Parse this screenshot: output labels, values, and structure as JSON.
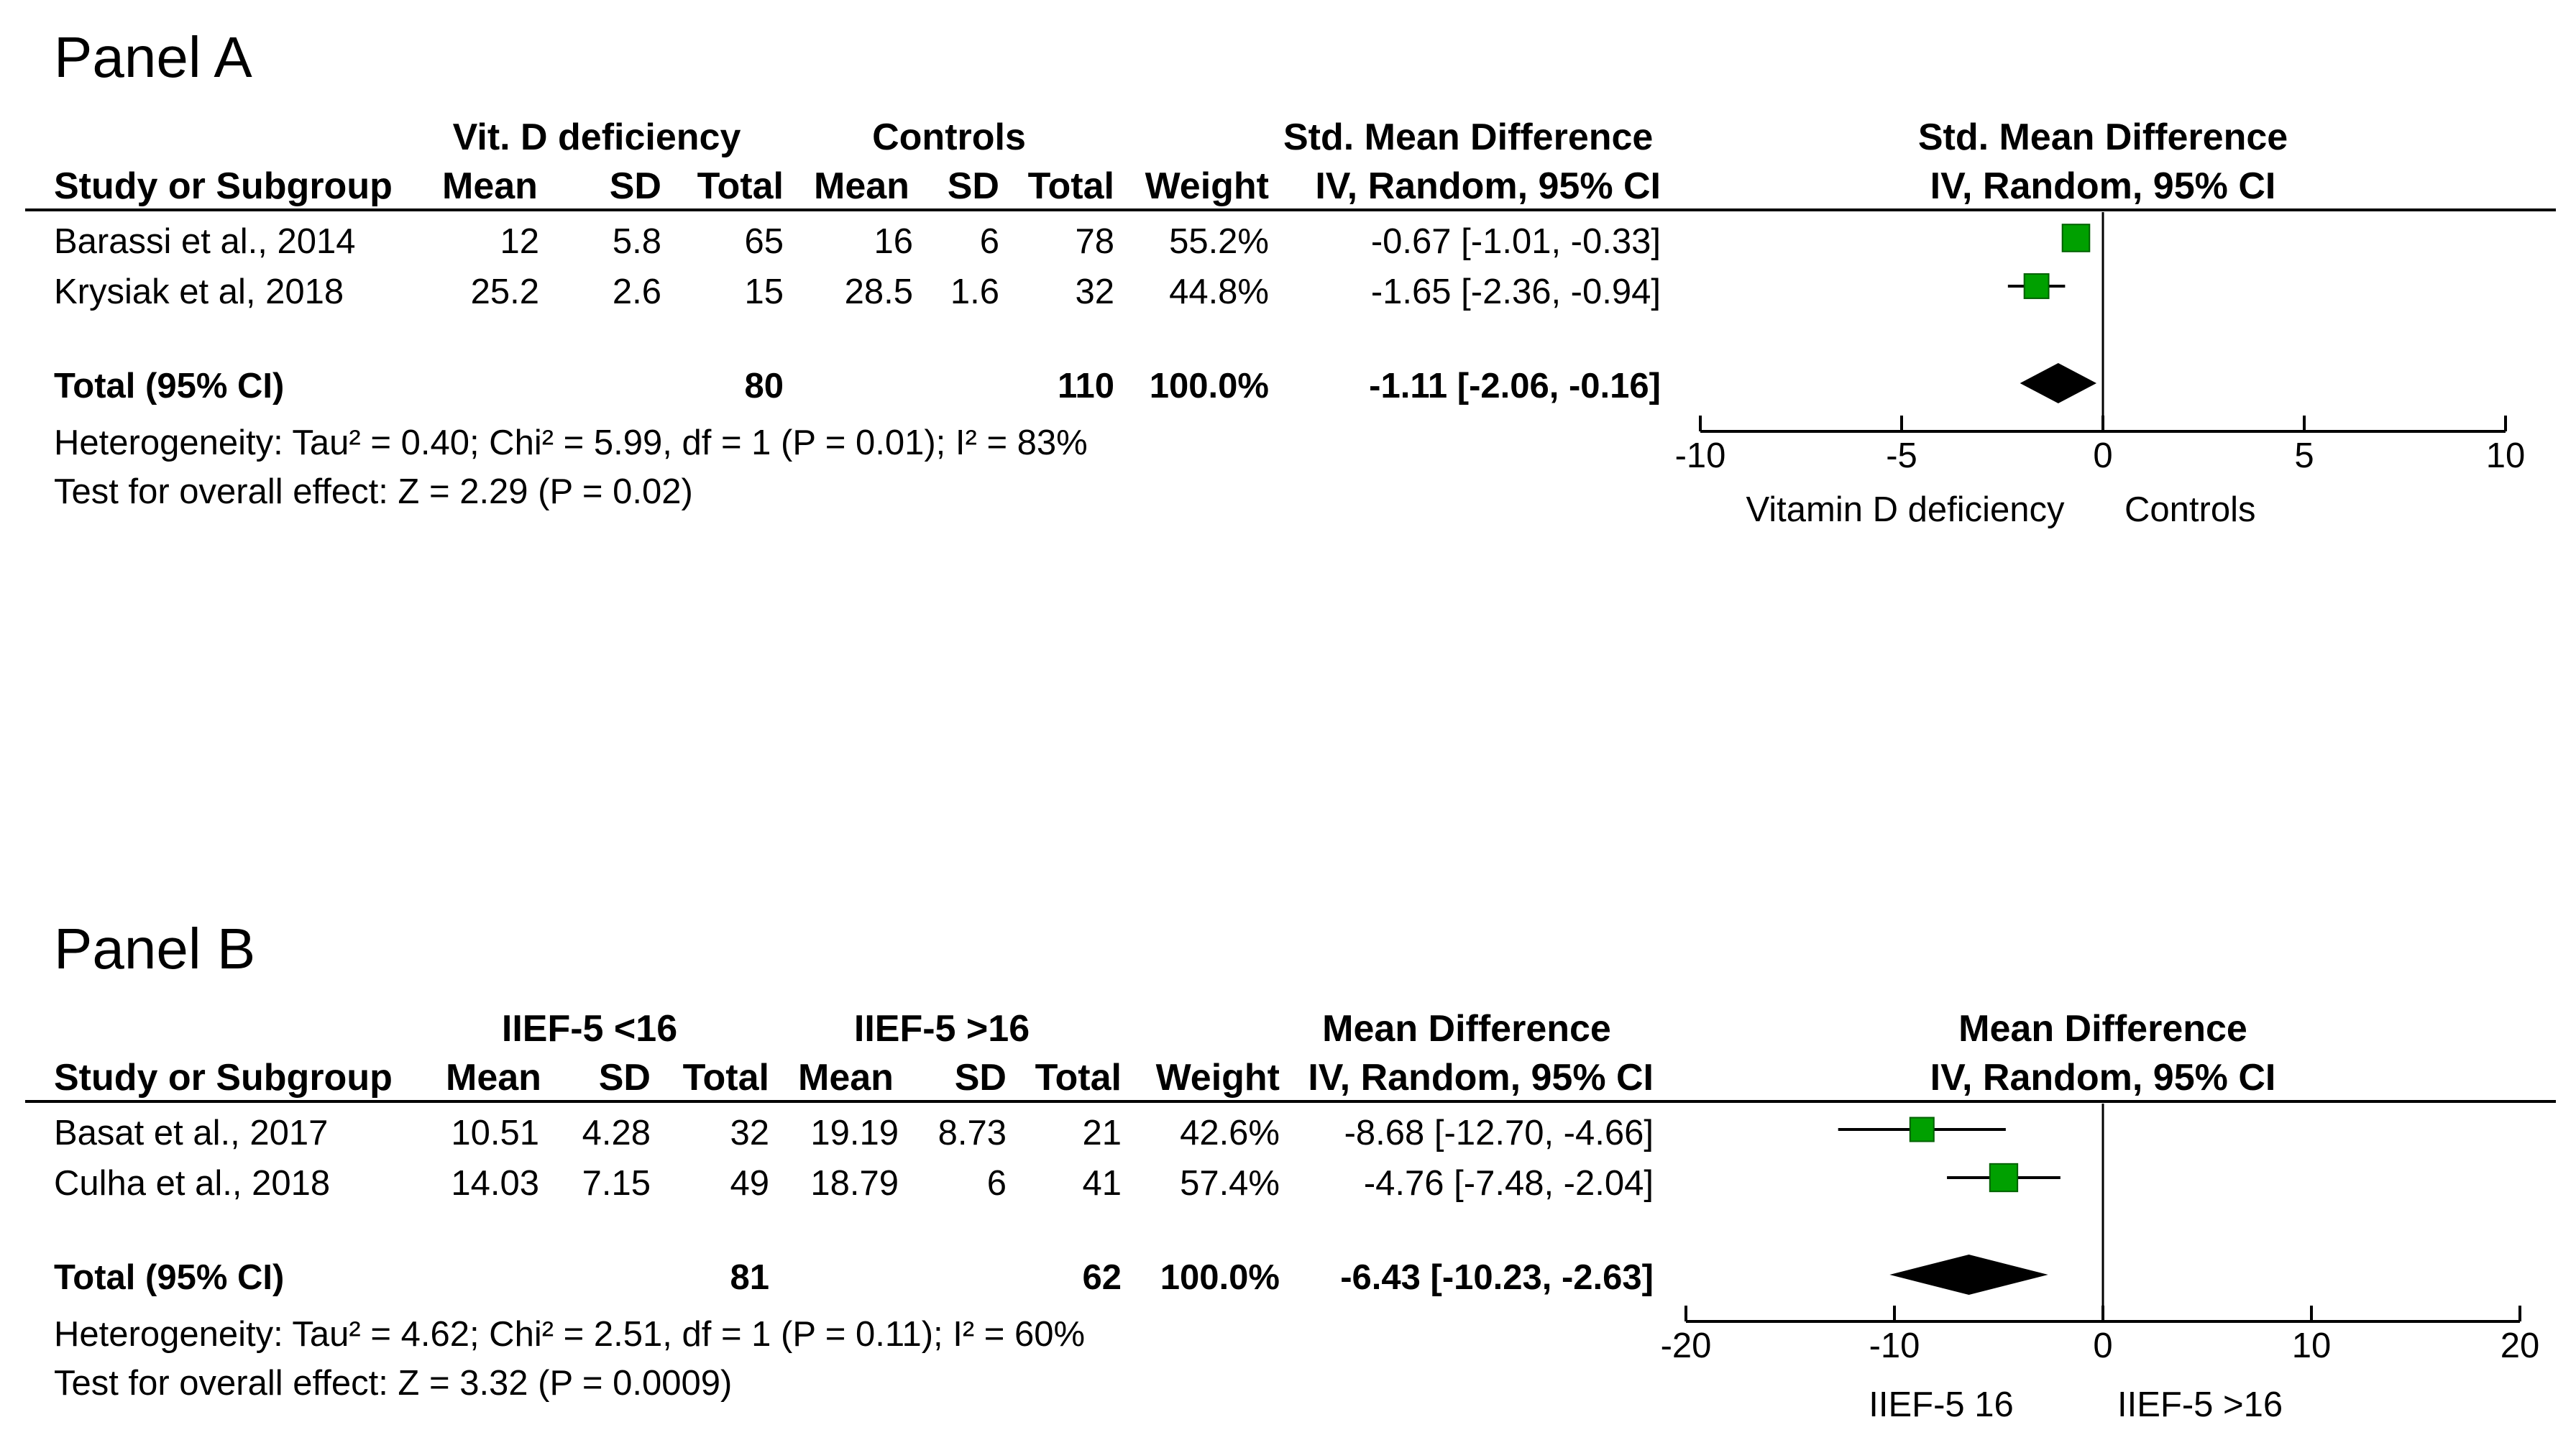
{
  "panels": [
    {
      "title": "Panel A",
      "group1": "Vit. D deficiency",
      "group2": "Controls",
      "effect_header": "Std. Mean Difference",
      "method": "IV, Random, 95% CI",
      "col": {
        "study": "Study or Subgroup",
        "mean": "Mean",
        "sd": "SD",
        "total": "Total",
        "weight": "Weight"
      },
      "studies": [
        {
          "name": "Barassi et al., 2014",
          "m1": "12",
          "sd1": "5.8",
          "n1": "65",
          "m2": "16",
          "sd2": "6",
          "n2": "78",
          "weight": "55.2%",
          "ci_text": "-0.67 [-1.01, -0.33]"
        },
        {
          "name": "Krysiak et al, 2018",
          "m1": "25.2",
          "sd1": "2.6",
          "n1": "15",
          "m2": "28.5",
          "sd2": "1.6",
          "n2": "32",
          "weight": "44.8%",
          "ci_text": "-1.65 [-2.36, -0.94]"
        }
      ],
      "total": {
        "label": "Total (95% CI)",
        "n1": "80",
        "n2": "110",
        "weight": "100.0%",
        "ci_text": "-1.11 [-2.06, -0.16]"
      },
      "heterogeneity": "Heterogeneity: Tau² = 0.40; Chi² = 5.99, df = 1 (P = 0.01); I² = 83%",
      "overall": "Test for overall effect: Z = 2.29 (P = 0.02)",
      "axis_left_label": "Vitamin D deficiency",
      "axis_right_label": "Controls"
    },
    {
      "title": "Panel B",
      "group1": "IIEF-5 <16",
      "group2": "IIEF-5 >16",
      "effect_header": "Mean Difference",
      "method": "IV, Random, 95% CI",
      "col": {
        "study": "Study or Subgroup",
        "mean": "Mean",
        "sd": "SD",
        "total": "Total",
        "weight": "Weight"
      },
      "studies": [
        {
          "name": "Basat et al., 2017",
          "m1": "10.51",
          "sd1": "4.28",
          "n1": "32",
          "m2": "19.19",
          "sd2": "8.73",
          "n2": "21",
          "weight": "42.6%",
          "ci_text": "-8.68 [-12.70, -4.66]"
        },
        {
          "name": "Culha et al., 2018",
          "m1": "14.03",
          "sd1": "7.15",
          "n1": "49",
          "m2": "18.79",
          "sd2": "6",
          "n2": "41",
          "weight": "57.4%",
          "ci_text": "-4.76 [-7.48, -2.04]"
        }
      ],
      "total": {
        "label": "Total (95% CI)",
        "n1": "81",
        "n2": "62",
        "weight": "100.0%",
        "ci_text": "-6.43 [-10.23, -2.63]"
      },
      "heterogeneity": "Heterogeneity: Tau² = 4.62; Chi² = 2.51, df = 1 (P = 0.11); I² = 60%",
      "overall": "Test for overall effect: Z = 3.32 (P = 0.0009)",
      "axis_left_label": "IIEF-5 16",
      "axis_right_label": "IIEF-5 >16"
    }
  ],
  "chart_data": [
    {
      "type": "forest",
      "title": "Panel A",
      "xlabel_left": "Vitamin D deficiency",
      "xlabel_right": "Controls",
      "xlim": [
        -10,
        10
      ],
      "ticks": [
        -10,
        -5,
        0,
        5,
        10
      ],
      "series": [
        {
          "name": "Barassi et al., 2014",
          "estimate": -0.67,
          "lower": -1.01,
          "upper": -0.33,
          "weight": 55.2
        },
        {
          "name": "Krysiak et al, 2018",
          "estimate": -1.65,
          "lower": -2.36,
          "upper": -0.94,
          "weight": 44.8
        }
      ],
      "pooled": {
        "estimate": -1.11,
        "lower": -2.06,
        "upper": -0.16
      },
      "marker_color": "#00a000"
    },
    {
      "type": "forest",
      "title": "Panel B",
      "xlabel_left": "IIEF-5 16",
      "xlabel_right": "IIEF-5 >16",
      "xlim": [
        -20,
        20
      ],
      "ticks": [
        -20,
        -10,
        0,
        10,
        20
      ],
      "series": [
        {
          "name": "Basat et al., 2017",
          "estimate": -8.68,
          "lower": -12.7,
          "upper": -4.66,
          "weight": 42.6
        },
        {
          "name": "Culha et al., 2018",
          "estimate": -4.76,
          "lower": -7.48,
          "upper": -2.04,
          "weight": 57.4
        }
      ],
      "pooled": {
        "estimate": -6.43,
        "lower": -10.23,
        "upper": -2.63
      },
      "marker_color": "#00a000"
    }
  ]
}
